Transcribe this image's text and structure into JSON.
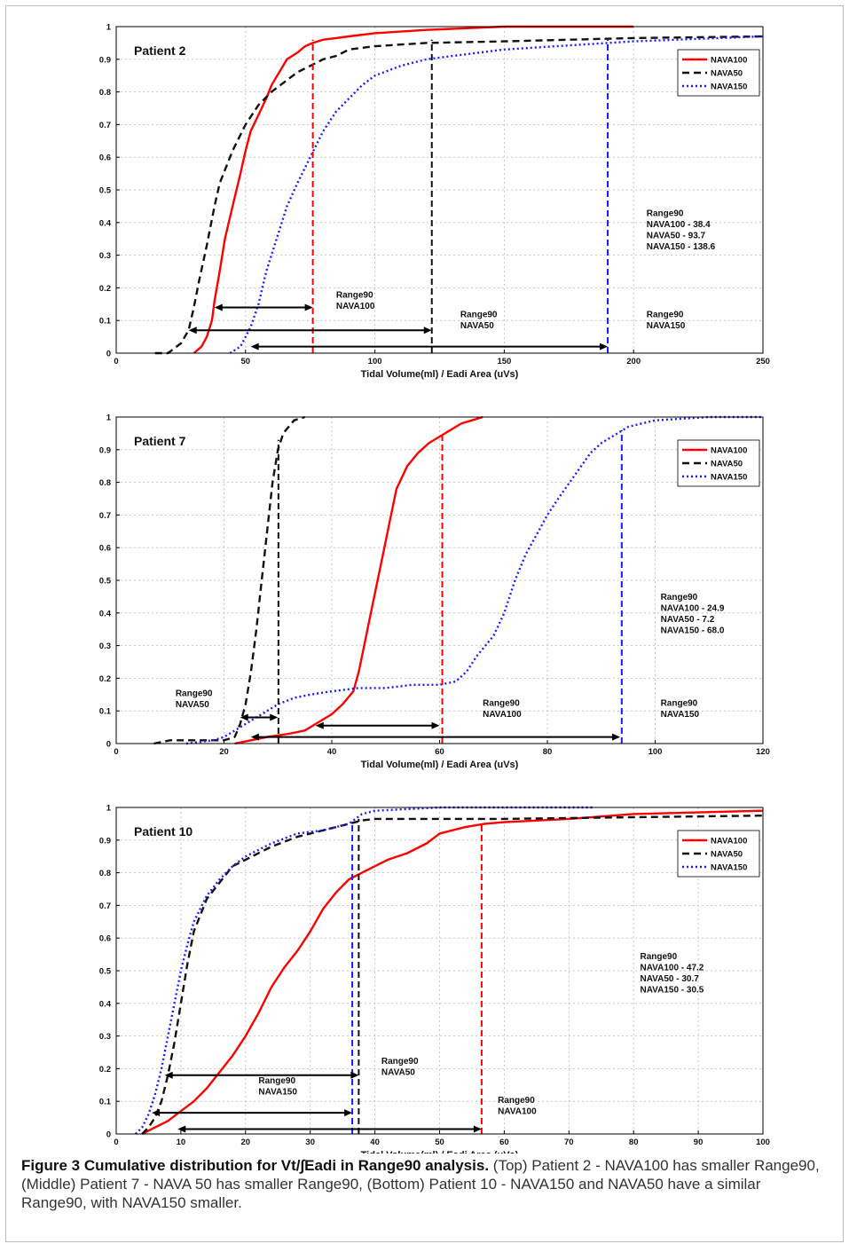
{
  "chart_data": [
    {
      "type": "line",
      "panel_label": "Patient 2",
      "xlabel": "Tidal Volume(ml) / Eadi Area (uVs)",
      "ylabel": "",
      "xlim": [
        0,
        250
      ],
      "ylim": [
        0,
        1
      ],
      "x_ticks": [
        "0",
        "50",
        "100",
        "150",
        "200",
        "250"
      ],
      "y_ticks": [
        "0",
        "0.1",
        "0.2",
        "0.3",
        "0.4",
        "0.5",
        "0.6",
        "0.7",
        "0.8",
        "0.9",
        "1"
      ],
      "grid": true,
      "legend_position": "top-right",
      "series": [
        {
          "name": "NAVA100",
          "color": "#ff0000",
          "style": "solid",
          "x": [
            30,
            33,
            35,
            37,
            38,
            40,
            42,
            45,
            48,
            50,
            52,
            55,
            58,
            60,
            63,
            66,
            70,
            73,
            76,
            80,
            85,
            90,
            100,
            120,
            150,
            200
          ],
          "y": [
            0,
            0.02,
            0.05,
            0.1,
            0.16,
            0.25,
            0.35,
            0.45,
            0.55,
            0.62,
            0.68,
            0.73,
            0.78,
            0.82,
            0.86,
            0.9,
            0.92,
            0.94,
            0.95,
            0.96,
            0.965,
            0.97,
            0.98,
            0.99,
            1.0,
            1.0
          ]
        },
        {
          "name": "NAVA50",
          "color": "#111111",
          "style": "dashed",
          "x": [
            15,
            20,
            25,
            28,
            30,
            32,
            35,
            38,
            40,
            45,
            50,
            55,
            60,
            65,
            70,
            75,
            80,
            85,
            90,
            100,
            110,
            120,
            150,
            200,
            250
          ],
          "y": [
            0,
            0,
            0.03,
            0.07,
            0.14,
            0.22,
            0.33,
            0.45,
            0.52,
            0.62,
            0.7,
            0.76,
            0.8,
            0.83,
            0.86,
            0.88,
            0.9,
            0.91,
            0.93,
            0.94,
            0.945,
            0.95,
            0.955,
            0.965,
            0.97
          ]
        },
        {
          "name": "NAVA150",
          "color": "#1a1aff",
          "style": "dotted",
          "x": [
            44,
            48,
            52,
            55,
            58,
            62,
            66,
            70,
            75,
            80,
            85,
            90,
            95,
            100,
            110,
            120,
            130,
            150,
            170,
            200,
            250
          ],
          "y": [
            0,
            0.02,
            0.08,
            0.15,
            0.25,
            0.35,
            0.45,
            0.52,
            0.6,
            0.68,
            0.74,
            0.78,
            0.82,
            0.85,
            0.88,
            0.9,
            0.91,
            0.93,
            0.94,
            0.955,
            0.97
          ]
        }
      ],
      "range_lines": [
        {
          "series": "NAVA100",
          "x": 76,
          "y_top": 0.96
        },
        {
          "series": "NAVA50",
          "x": 122,
          "y_top": 0.96
        },
        {
          "series": "NAVA150",
          "x": 190,
          "y_top": 0.96
        }
      ],
      "arrows": [
        {
          "series": "NAVA100",
          "x1": 38,
          "x2": 76,
          "y": 0.14
        },
        {
          "series": "NAVA50",
          "x1": 28,
          "x2": 122,
          "y": 0.07
        },
        {
          "series": "NAVA150",
          "x1": 52,
          "x2": 190,
          "y": 0.02
        }
      ],
      "annotations": [
        {
          "lines": [
            "Range90",
            "NAVA100"
          ],
          "x": 85,
          "y": 0.17
        },
        {
          "lines": [
            "Range90",
            "NAVA50"
          ],
          "x": 133,
          "y": 0.11
        },
        {
          "lines": [
            "Range90",
            "NAVA150"
          ],
          "x": 205,
          "y": 0.11
        },
        {
          "lines": [
            "Range90",
            "NAVA100 - 38.4",
            "NAVA50 - 93.7",
            "NAVA150 - 138.6"
          ],
          "x": 205,
          "y": 0.42
        }
      ]
    },
    {
      "type": "line",
      "panel_label": "Patient 7",
      "xlabel": "Tidal Volume(ml) / Eadi Area (uVs)",
      "ylabel": "",
      "xlim": [
        0,
        120
      ],
      "ylim": [
        0,
        1
      ],
      "x_ticks": [
        "0",
        "20",
        "40",
        "60",
        "80",
        "100",
        "120"
      ],
      "y_ticks": [
        "0",
        "0.1",
        "0.2",
        "0.3",
        "0.4",
        "0.5",
        "0.6",
        "0.7",
        "0.8",
        "0.9",
        "1"
      ],
      "grid": true,
      "legend_position": "top-right",
      "series": [
        {
          "name": "NAVA100",
          "color": "#ff0000",
          "style": "solid",
          "x": [
            22,
            25,
            28,
            32,
            35,
            37,
            40,
            42,
            44,
            45,
            46,
            47,
            48,
            49,
            50,
            51,
            52,
            54,
            56,
            58,
            60,
            62,
            64,
            66,
            68
          ],
          "y": [
            0,
            0.01,
            0.02,
            0.03,
            0.04,
            0.06,
            0.09,
            0.12,
            0.16,
            0.22,
            0.3,
            0.38,
            0.46,
            0.54,
            0.62,
            0.7,
            0.78,
            0.85,
            0.89,
            0.92,
            0.94,
            0.96,
            0.98,
            0.99,
            1.0
          ]
        },
        {
          "name": "NAVA50",
          "color": "#111111",
          "style": "dashed",
          "x": [
            7,
            10,
            15,
            20,
            22,
            23,
            24,
            25,
            26,
            27,
            28,
            29,
            30,
            31,
            32,
            33,
            35
          ],
          "y": [
            0,
            0.01,
            0.01,
            0.01,
            0.02,
            0.06,
            0.12,
            0.22,
            0.35,
            0.5,
            0.65,
            0.8,
            0.9,
            0.95,
            0.97,
            0.99,
            1.0
          ]
        },
        {
          "name": "NAVA150",
          "color": "#1a1aff",
          "style": "dotted",
          "x": [
            13,
            18,
            20,
            22,
            25,
            28,
            30,
            33,
            36,
            40,
            45,
            50,
            55,
            60,
            63,
            65,
            67,
            70,
            72,
            74,
            76,
            78,
            80,
            82,
            85,
            88,
            90,
            93,
            95,
            100,
            110,
            120
          ],
          "y": [
            0,
            0.01,
            0.02,
            0.04,
            0.07,
            0.1,
            0.12,
            0.14,
            0.15,
            0.16,
            0.17,
            0.17,
            0.18,
            0.18,
            0.19,
            0.22,
            0.27,
            0.33,
            0.4,
            0.5,
            0.58,
            0.64,
            0.7,
            0.75,
            0.82,
            0.89,
            0.92,
            0.95,
            0.97,
            0.99,
            1.0,
            1.0
          ]
        }
      ],
      "range_lines": [
        {
          "series": "NAVA50",
          "x": 30.1,
          "y_top": 0.93
        },
        {
          "series": "NAVA100",
          "x": 60.5,
          "y_top": 0.95
        },
        {
          "series": "NAVA150",
          "x": 93.8,
          "y_top": 0.96
        }
      ],
      "arrows": [
        {
          "series": "NAVA50",
          "x1": 23,
          "x2": 30,
          "y": 0.08
        },
        {
          "series": "NAVA100",
          "x1": 37,
          "x2": 60,
          "y": 0.055
        },
        {
          "series": "NAVA150",
          "x1": 25,
          "x2": 93.5,
          "y": 0.02
        }
      ],
      "annotations": [
        {
          "lines": [
            "Range90",
            "NAVA50"
          ],
          "x": 11,
          "y": 0.145
        },
        {
          "lines": [
            "Range90",
            "NAVA100"
          ],
          "x": 68,
          "y": 0.115
        },
        {
          "lines": [
            "Range90",
            "NAVA150"
          ],
          "x": 101,
          "y": 0.115
        },
        {
          "lines": [
            "Range90",
            "NAVA100 - 24.9",
            "NAVA50 - 7.2",
            "NAVA150 - 68.0"
          ],
          "x": 101,
          "y": 0.44
        }
      ]
    },
    {
      "type": "line",
      "panel_label": "Patient 10",
      "xlabel": "Tidal Volume(ml) / Eadi Area (uVs)",
      "ylabel": "",
      "xlim": [
        0,
        100
      ],
      "ylim": [
        0,
        1
      ],
      "x_ticks": [
        "0",
        "10",
        "20",
        "30",
        "40",
        "50",
        "60",
        "70",
        "80",
        "90",
        "100"
      ],
      "y_ticks": [
        "0",
        "0.1",
        "0.2",
        "0.3",
        "0.4",
        "0.5",
        "0.6",
        "0.7",
        "0.8",
        "0.9",
        "1"
      ],
      "grid": true,
      "legend_position": "top-right",
      "series": [
        {
          "name": "NAVA100",
          "color": "#ff0000",
          "style": "solid",
          "x": [
            4,
            6,
            8,
            10,
            12,
            14,
            16,
            18,
            20,
            22,
            24,
            26,
            28,
            30,
            32,
            34,
            36,
            38,
            40,
            42,
            45,
            48,
            50,
            54,
            57,
            60,
            70,
            80,
            100
          ],
          "y": [
            0,
            0.02,
            0.04,
            0.07,
            0.1,
            0.14,
            0.19,
            0.24,
            0.3,
            0.37,
            0.45,
            0.51,
            0.56,
            0.62,
            0.69,
            0.74,
            0.78,
            0.8,
            0.82,
            0.84,
            0.86,
            0.89,
            0.92,
            0.94,
            0.95,
            0.955,
            0.965,
            0.98,
            0.99
          ]
        },
        {
          "name": "NAVA50",
          "color": "#111111",
          "style": "dashed",
          "x": [
            4,
            5,
            6,
            7,
            8,
            9,
            10,
            11,
            12,
            14,
            16,
            18,
            20,
            24,
            28,
            32,
            36,
            38,
            40,
            60,
            80,
            100
          ],
          "y": [
            0,
            0.02,
            0.05,
            0.1,
            0.18,
            0.28,
            0.4,
            0.52,
            0.62,
            0.72,
            0.77,
            0.82,
            0.84,
            0.88,
            0.91,
            0.93,
            0.95,
            0.96,
            0.965,
            0.965,
            0.97,
            0.975
          ]
        },
        {
          "name": "NAVA150",
          "color": "#1a1aff",
          "style": "dotted",
          "x": [
            3,
            4,
            5,
            6,
            7,
            8,
            9,
            10,
            11,
            12,
            14,
            16,
            18,
            20,
            24,
            28,
            32,
            36,
            38,
            40,
            50,
            60,
            74
          ],
          "y": [
            0,
            0.02,
            0.06,
            0.12,
            0.2,
            0.3,
            0.4,
            0.5,
            0.58,
            0.65,
            0.73,
            0.78,
            0.82,
            0.85,
            0.89,
            0.92,
            0.93,
            0.95,
            0.98,
            0.99,
            1.0,
            1.0,
            1.0
          ]
        }
      ],
      "range_lines": [
        {
          "series": "NAVA150",
          "x": 36.5,
          "y_top": 0.95
        },
        {
          "series": "NAVA50",
          "x": 37.5,
          "y_top": 0.965
        },
        {
          "series": "NAVA100",
          "x": 56.5,
          "y_top": 0.95
        }
      ],
      "arrows": [
        {
          "series": "NAVA50",
          "x1": 7.5,
          "x2": 37.5,
          "y": 0.18
        },
        {
          "series": "NAVA150",
          "x1": 5.5,
          "x2": 36.5,
          "y": 0.065
        },
        {
          "series": "NAVA100",
          "x1": 9.5,
          "x2": 56.5,
          "y": 0.015
        }
      ],
      "annotations": [
        {
          "lines": [
            "Range90",
            "NAVA50"
          ],
          "x": 41,
          "y": 0.215
        },
        {
          "lines": [
            "Range90",
            "NAVA150"
          ],
          "x": 22,
          "y": 0.155
        },
        {
          "lines": [
            "Range90",
            "NAVA100"
          ],
          "x": 59,
          "y": 0.095
        },
        {
          "lines": [
            "Range90",
            "NAVA100 - 47.2",
            "NAVA50 - 30.7",
            "NAVA150 - 30.5"
          ],
          "x": 81,
          "y": 0.535
        }
      ]
    }
  ],
  "caption": {
    "title": "Figure 3 Cumulative distribution for Vt/∫Eadi in Range90 analysis.",
    "body": "(Top) Patient 2 - NAVA100 has smaller Range90, (Middle) Patient 7 - NAVA 50 has smaller Range90, (Bottom) Patient 10 - NAVA150 and NAVA50 have a similar Range90, with NAVA150 smaller."
  }
}
